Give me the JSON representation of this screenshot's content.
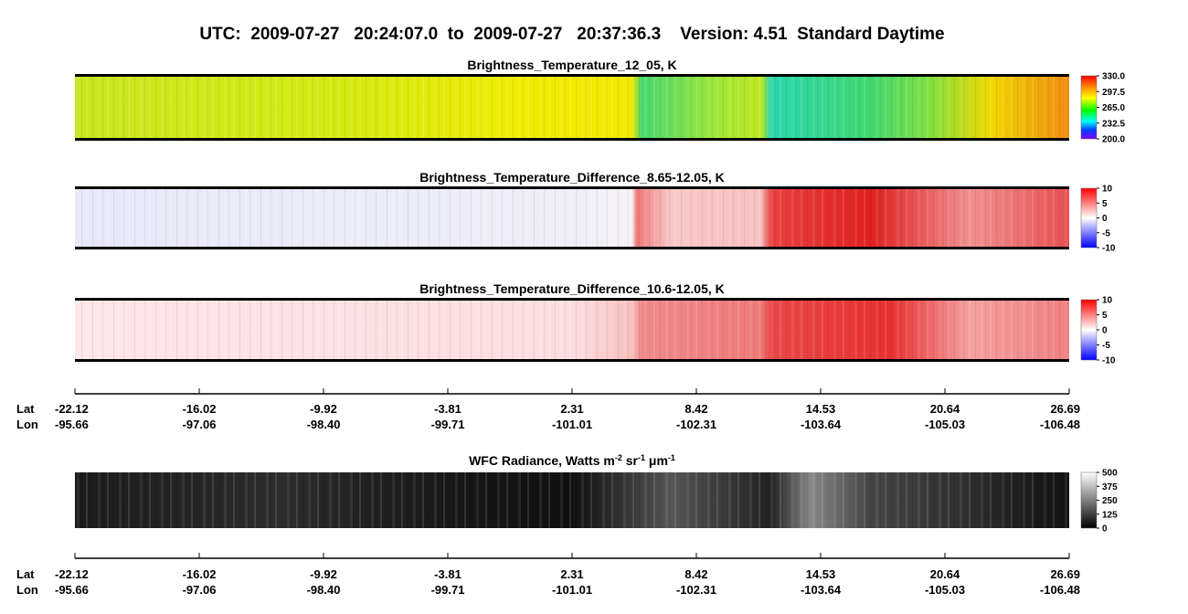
{
  "header": {
    "title": "UTC:  2009-07-27   20:24:07.0  to  2009-07-27   20:37:36.3    Version: 4.51  Standard Daytime"
  },
  "panels": [
    {
      "title": "Brightness_Temperature_12_05, K",
      "colorbar_ticks": [
        "330.0",
        "297.5",
        "265.0",
        "232.5",
        "200.0"
      ]
    },
    {
      "title": "Brightness_Temperature_Difference_8.65-12.05, K",
      "colorbar_ticks": [
        "10",
        "5",
        "0",
        "-5",
        "-10"
      ]
    },
    {
      "title": "Brightness_Temperature_Difference_10.6-12.05, K",
      "colorbar_ticks": [
        "10",
        "5",
        "0",
        "-5",
        "-10"
      ]
    }
  ],
  "axis": {
    "lat_label": "Lat",
    "lon_label": "Lon",
    "lat": [
      "-22.12",
      "-16.02",
      "-9.92",
      "-3.81",
      "2.31",
      "8.42",
      "14.53",
      "20.64",
      "26.69"
    ],
    "lon": [
      "-95.66",
      "-97.06",
      "-98.40",
      "-99.71",
      "-101.01",
      "-102.31",
      "-103.64",
      "-105.03",
      "-106.48"
    ]
  },
  "wfc_panel": {
    "title_parts": [
      "WFC Radiance, Watts m",
      "-2",
      " sr",
      "-1",
      " μm",
      "-1"
    ],
    "colorbar_ticks": [
      "500",
      "375",
      "250",
      "125",
      "0"
    ]
  }
}
